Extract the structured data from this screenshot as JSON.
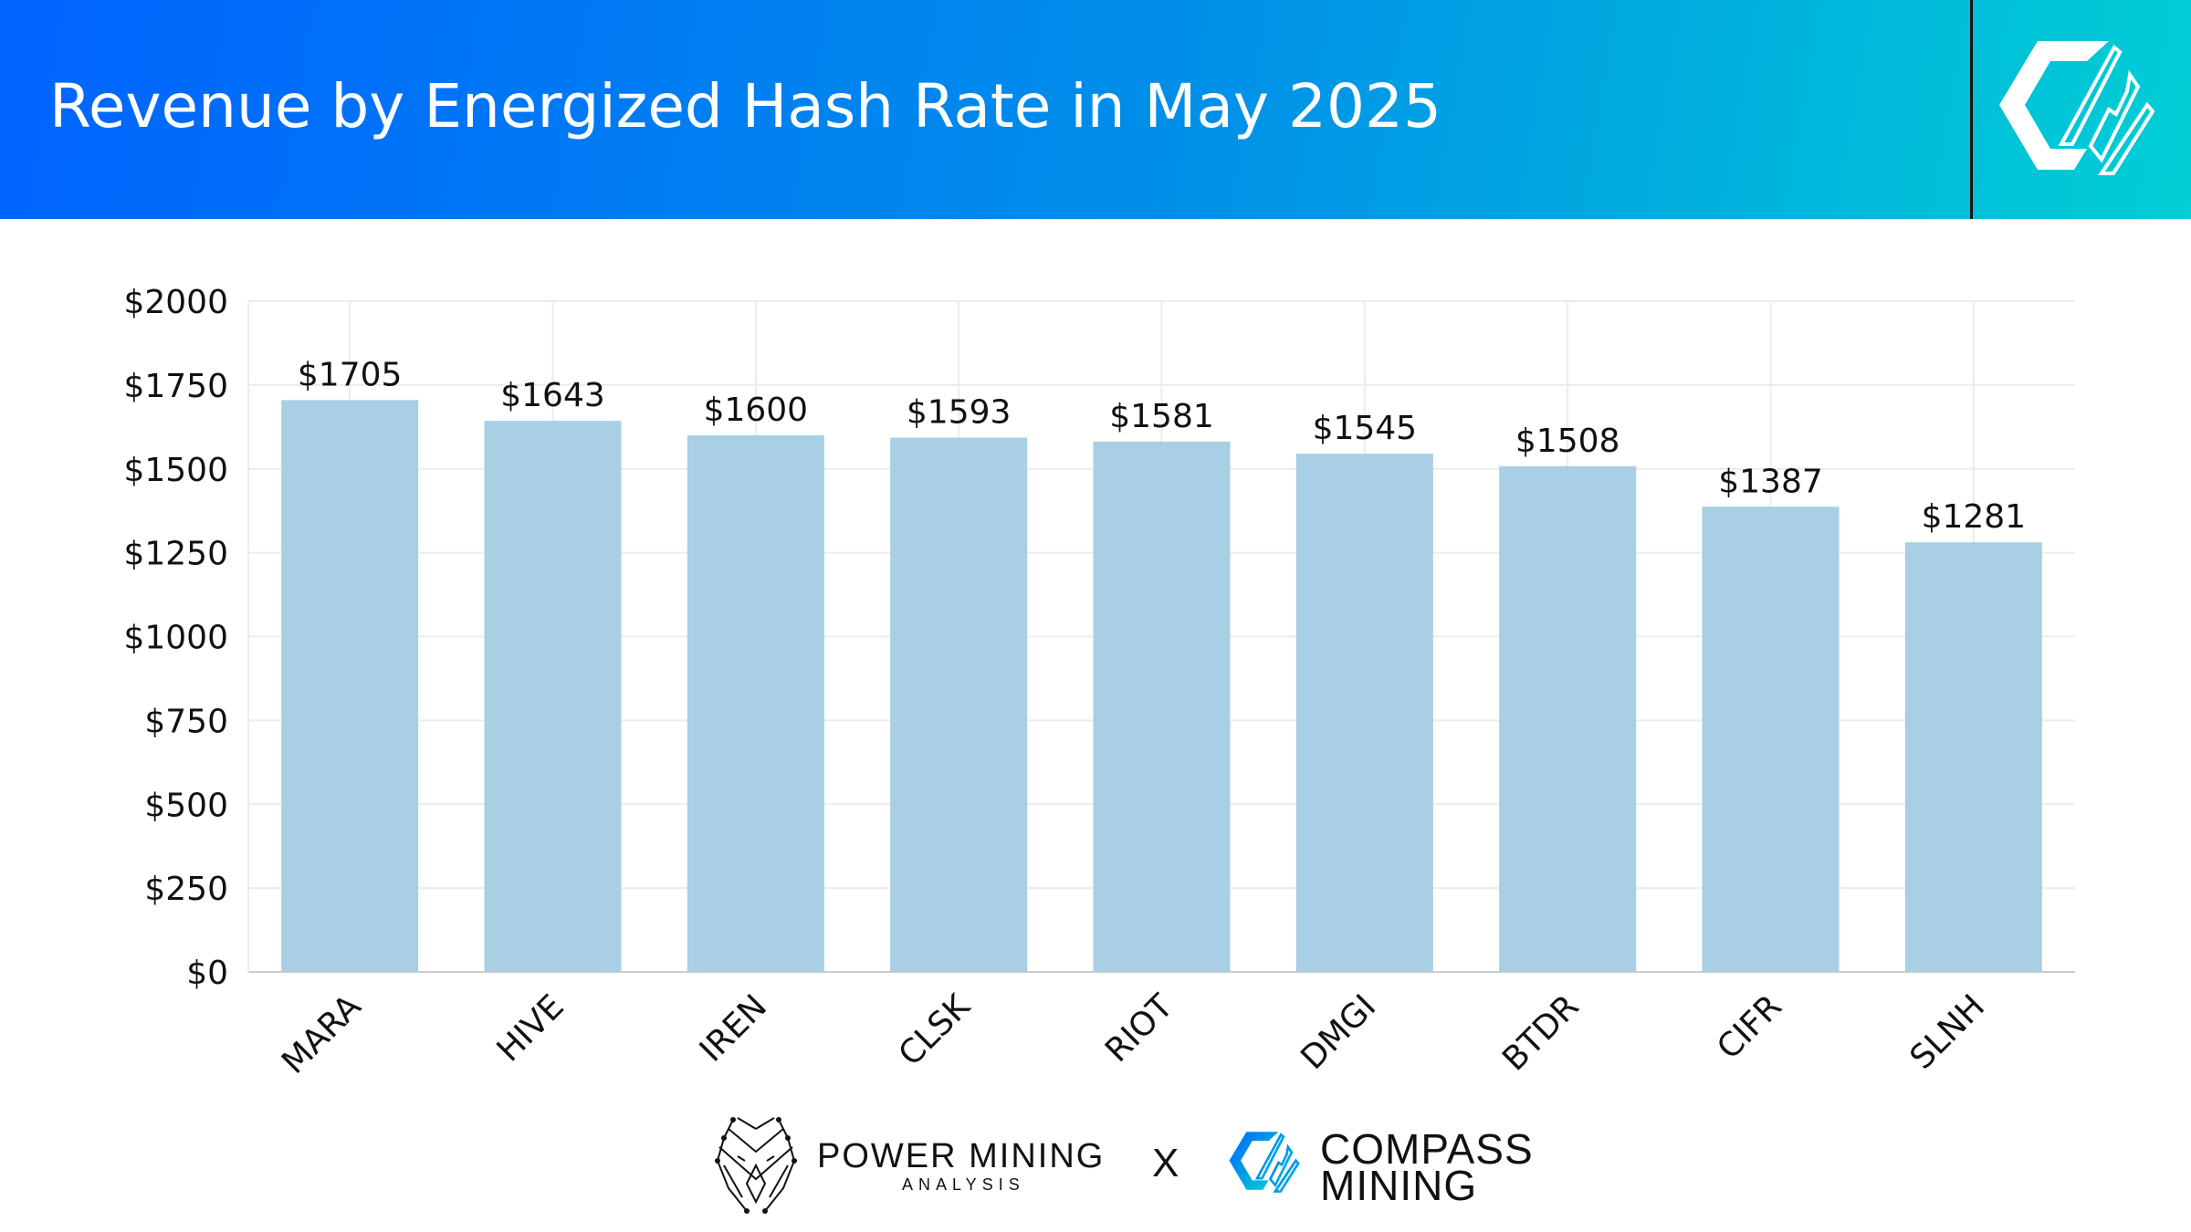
{
  "header": {
    "title": "Revenue by Energized Hash Rate in May 2025"
  },
  "chart_data": {
    "type": "bar",
    "title": "Revenue by Energized Hash Rate in May 2025",
    "categories": [
      "MARA",
      "HIVE",
      "IREN",
      "CLSK",
      "RIOT",
      "DMGI",
      "BTDR",
      "CIFR",
      "SLNH"
    ],
    "values": [
      1705,
      1643,
      1600,
      1593,
      1581,
      1545,
      1508,
      1387,
      1281
    ],
    "data_labels": [
      "$1705",
      "$1643",
      "$1600",
      "$1593",
      "$1581",
      "$1545",
      "$1508",
      "$1387",
      "$1281"
    ],
    "ylim": [
      0,
      2000
    ],
    "yticks": [
      0,
      250,
      500,
      750,
      1000,
      1250,
      1500,
      1750,
      2000
    ],
    "ytick_labels": [
      "$0",
      "$250",
      "$500",
      "$750",
      "$1000",
      "$1250",
      "$1500",
      "$1750",
      "$2000"
    ],
    "xlabel": "",
    "ylabel": "",
    "grid": true,
    "bar_color": "#a8cfe3"
  },
  "footer": {
    "power_mining": "POWER MINING",
    "analysis": "ANALYSIS",
    "separator": "X",
    "compass": "COMPASS",
    "mining": "MINING"
  },
  "colors": {
    "header_start": "#0063ff",
    "header_end": "#00cfd4"
  }
}
